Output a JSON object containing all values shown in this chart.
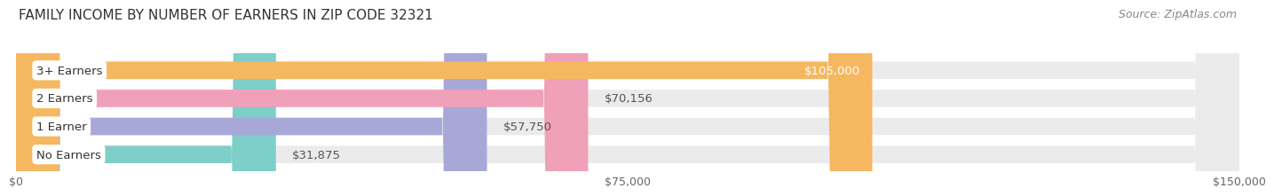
{
  "title": "FAMILY INCOME BY NUMBER OF EARNERS IN ZIP CODE 32321",
  "source": "Source: ZipAtlas.com",
  "categories": [
    "No Earners",
    "1 Earner",
    "2 Earners",
    "3+ Earners"
  ],
  "values": [
    31875,
    57750,
    70156,
    105000
  ],
  "bar_colors": [
    "#7ececa",
    "#a8a8d8",
    "#f0a0b8",
    "#f5b860"
  ],
  "bar_bg_color": "#ebebeb",
  "label_colors": [
    "#333333",
    "#333333",
    "#333333",
    "#ffffff"
  ],
  "value_labels": [
    "$31,875",
    "$57,750",
    "$70,156",
    "$105,000"
  ],
  "xlim": [
    0,
    150000
  ],
  "xticks": [
    0,
    75000,
    150000
  ],
  "xticklabels": [
    "$0",
    "$75,000",
    "$150,000"
  ],
  "bar_height": 0.62,
  "bg_color": "#ffffff",
  "title_fontsize": 11,
  "source_fontsize": 9,
  "label_fontsize": 9.5,
  "value_fontsize": 9.5,
  "tick_fontsize": 9
}
